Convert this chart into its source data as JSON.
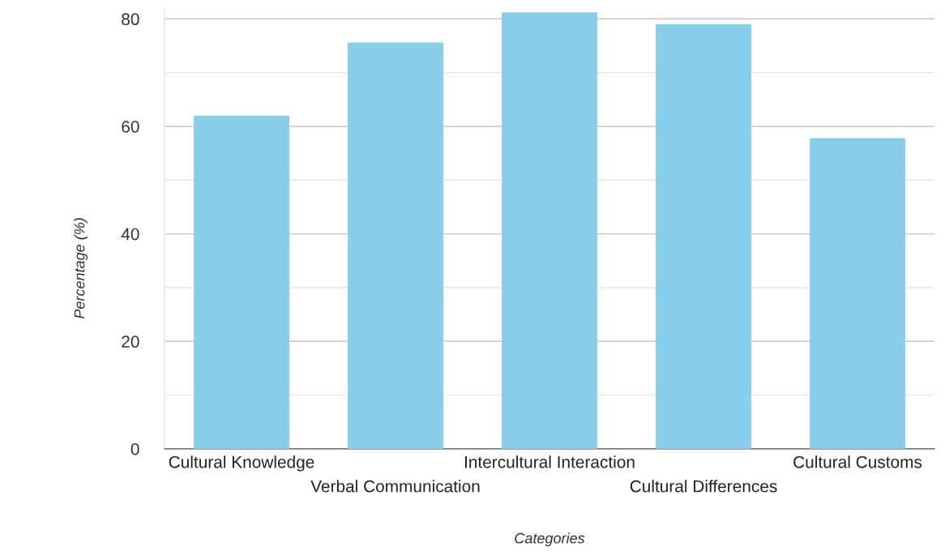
{
  "chart_data": {
    "type": "bar",
    "xlabel": "Categories",
    "ylabel": "Percentage (%)",
    "categories": [
      "Cultural Knowledge",
      "Verbal Communication",
      "Intercultural Interaction",
      "Cultural Differences",
      "Cultural Customs"
    ],
    "values": [
      62,
      75.6,
      81.2,
      79,
      57.8
    ],
    "color": "#87ceeb",
    "ylim": [
      0,
      82
    ],
    "yticks": [
      0,
      {
        "value": 10,
        "label": null
      },
      20,
      {
        "value": 30,
        "label": null
      },
      40,
      {
        "value": 50,
        "label": null
      },
      60,
      {
        "value": 70,
        "label": null
      },
      80
    ],
    "grid": "y",
    "legend": false
  }
}
